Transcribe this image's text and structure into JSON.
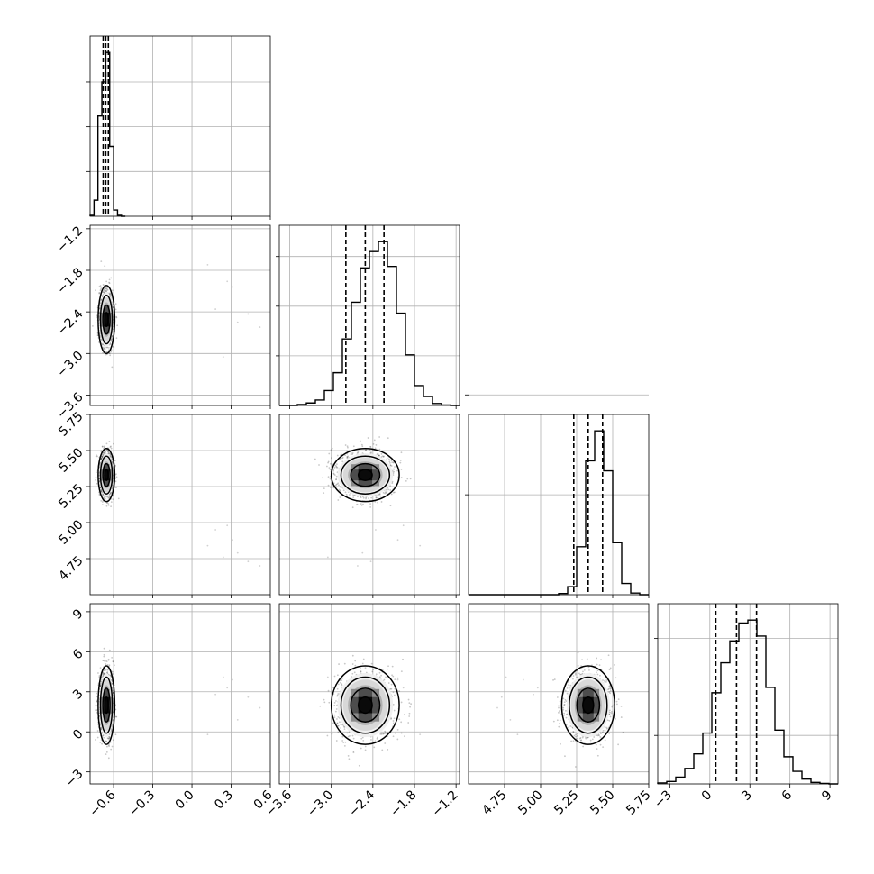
{
  "chart_data": {
    "type": "corner",
    "grid": true,
    "parameters": [
      {
        "range": [
          -0.78,
          0.6
        ],
        "ticks": [
          -0.6,
          -0.3,
          0.0,
          0.3,
          0.6
        ],
        "tick_labels": [
          "−0.6",
          "−0.3",
          "0.0",
          "0.3",
          "0.6"
        ],
        "histogram": {
          "edges": [
            -0.78,
            -0.75,
            -0.72,
            -0.69,
            -0.66,
            -0.63,
            -0.6,
            -0.57,
            -0.54,
            -0.51
          ],
          "counts": [
            1,
            18,
            112,
            150,
            183,
            78,
            7,
            1,
            0
          ],
          "hist_ticks": [
            50,
            100,
            150
          ]
        },
        "quantiles": [
          -0.68,
          -0.66,
          -0.64
        ]
      },
      {
        "range": [
          -3.75,
          -1.15
        ],
        "ticks": [
          -3.6,
          -3.0,
          -2.4,
          -1.8,
          -1.2
        ],
        "tick_labels": [
          "−3.6",
          "−3.0",
          "−2.4",
          "−1.8",
          "−1.2"
        ],
        "histogram": {
          "edges": [
            -3.75,
            -3.62,
            -3.49,
            -3.36,
            -3.23,
            -3.1,
            -2.97,
            -2.84,
            -2.71,
            -2.58,
            -2.45,
            -2.32,
            -2.19,
            -2.06,
            -1.93,
            -1.8,
            -1.67,
            -1.54,
            -1.41,
            -1.28,
            -1.15
          ],
          "counts": [
            0,
            0,
            2,
            5,
            11,
            30,
            66,
            134,
            208,
            277,
            310,
            330,
            280,
            186,
            102,
            40,
            18,
            4,
            1,
            0
          ],
          "hist_ticks": [
            100,
            200,
            300
          ]
        },
        "quantiles": [
          -2.79,
          -2.51,
          -2.24
        ]
      },
      {
        "range": [
          4.5,
          5.75
        ],
        "ticks": [
          4.75,
          5.0,
          5.25,
          5.5,
          5.75
        ],
        "tick_labels": [
          "4.75",
          "5.00",
          "5.25",
          "5.50",
          "5.75"
        ],
        "histogram": {
          "edges": [
            4.5,
            4.5625,
            4.625,
            4.6875,
            4.75,
            4.8125,
            4.875,
            4.9375,
            5.0,
            5.0625,
            5.125,
            5.1875,
            5.25,
            5.3125,
            5.375,
            5.4375,
            5.5,
            5.5625,
            5.625,
            5.6875,
            5.75
          ],
          "counts": [
            0,
            0,
            0,
            0,
            0,
            0,
            0,
            0,
            0,
            0,
            3,
            20,
            120,
            335,
            410,
            310,
            130,
            28,
            4,
            0
          ],
          "hist_ticks": [
            250,
            500
          ]
        },
        "quantiles": [
          5.23,
          5.33,
          5.43
        ]
      },
      {
        "range": [
          -3.9,
          9.6
        ],
        "ticks": [
          -3,
          0,
          3,
          6,
          9
        ],
        "tick_labels": [
          "−3",
          "0",
          "3",
          "6",
          "9"
        ],
        "histogram": {
          "edges": [
            -3.9,
            -3.225,
            -2.55,
            -1.875,
            -1.2,
            -0.525,
            0.15,
            0.825,
            1.5,
            2.175,
            2.85,
            3.525,
            4.2,
            4.875,
            5.55,
            6.225,
            6.9,
            7.575,
            8.25,
            8.925,
            9.6
          ],
          "counts": [
            2,
            5,
            14,
            32,
            62,
            105,
            188,
            250,
            295,
            332,
            338,
            305,
            199,
            111,
            56,
            26,
            10,
            3,
            1,
            0
          ],
          "hist_ticks": [
            100,
            200,
            300
          ]
        },
        "quantiles": [
          0.45,
          2.0,
          3.5
        ]
      }
    ],
    "centers": [
      -0.655,
      -2.51,
      5.33,
      2.0
    ],
    "sigmas": [
      0.026,
      0.2,
      0.075,
      1.2
    ],
    "outliers": [
      [
        0.27,
        -1.96,
        4.98,
        3.3
      ],
      [
        0.31,
        -2.04,
        4.88,
        3.9
      ],
      [
        0.18,
        -2.36,
        4.95,
        2.8
      ],
      [
        0.35,
        -2.55,
        4.79,
        0.9
      ],
      [
        0.43,
        -2.43,
        4.73,
        2.6
      ],
      [
        0.24,
        -3.05,
        4.76,
        4.1
      ],
      [
        0.12,
        -1.72,
        4.84,
        -0.2
      ],
      [
        0.52,
        -2.62,
        4.7,
        1.8
      ]
    ]
  }
}
